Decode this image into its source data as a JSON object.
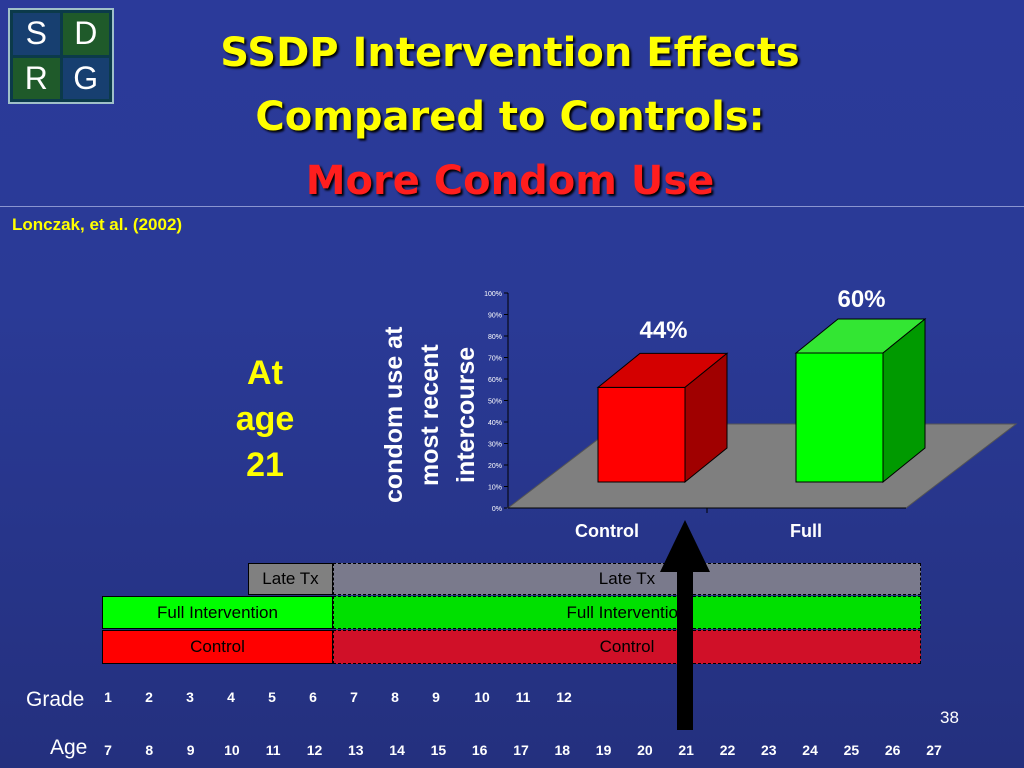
{
  "logo": {
    "letters": [
      "S",
      "D",
      "R",
      "G"
    ]
  },
  "title": {
    "line1": "SSDP Intervention Effects",
    "line2": "Compared to Controls:",
    "line3": "More Condom Use"
  },
  "citation": "Lonczak, et al. (2002)",
  "age_label": {
    "line1": "At",
    "line2": "age",
    "line3": "21"
  },
  "chart_data": {
    "type": "bar",
    "categories": [
      "Control",
      "Full"
    ],
    "values": [
      44,
      60
    ],
    "data_labels": [
      "44%",
      "60%"
    ],
    "colors": [
      "#ff0000",
      "#00ff00"
    ],
    "ylabel_lines": [
      "condom use at",
      "most recent",
      "intercourse"
    ],
    "ylim": [
      0,
      100
    ],
    "yticks": [
      "0%",
      "10%",
      "20%",
      "30%",
      "40%",
      "50%",
      "60%",
      "70%",
      "80%",
      "90%",
      "100%"
    ]
  },
  "timeline": {
    "late_tx_left": "Late Tx",
    "late_tx_right": "Late Tx",
    "full_left": "Full Intervention",
    "full_right": "Full Intervention",
    "control_left": "Control",
    "control_right": "Control",
    "grade_label": "Grade",
    "age_label": "Age",
    "grades": [
      "1",
      "2",
      "3",
      "4",
      "5",
      "6",
      "7",
      "8",
      "9",
      "10",
      "11",
      "12"
    ],
    "ages": [
      "7",
      "8",
      "9",
      "10",
      "11",
      "12",
      "13",
      "14",
      "15",
      "16",
      "17",
      "18",
      "19",
      "20",
      "21",
      "22",
      "23",
      "24",
      "25",
      "26",
      "27"
    ]
  },
  "page_number": "38"
}
